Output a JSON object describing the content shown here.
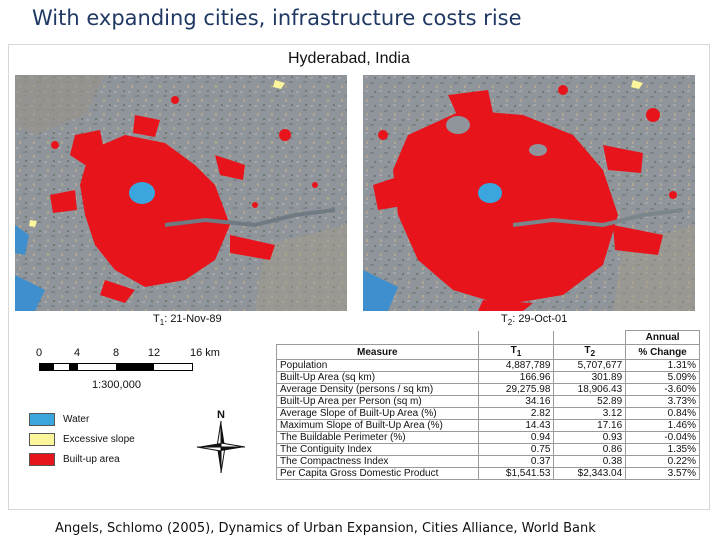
{
  "slide": {
    "title": "With expanding cities, infrastructure costs rise",
    "citation": "Angels, Schlomo (2005), Dynamics of Urban Expansion, Cities Alliance, World Bank"
  },
  "figure": {
    "title": "Hyderabad, India",
    "maps": [
      {
        "label_prefix": "T",
        "label_sub": "1",
        "label_suffix": ":",
        "date": "21-Nov-89"
      },
      {
        "label_prefix": "T",
        "label_sub": "2",
        "label_suffix": ":",
        "date": "29-Oct-01"
      }
    ],
    "scale": {
      "ticks": [
        "0",
        "4",
        "8",
        "12",
        "16 km"
      ],
      "ratio": "1:300,000"
    },
    "legend": [
      {
        "label": "Water",
        "color": "#3aa6dd"
      },
      {
        "label": "Excessive slope",
        "color": "#fbf59b"
      },
      {
        "label": "Built-up area",
        "color": "#e8141b"
      }
    ],
    "compass_letter": "N"
  },
  "table": {
    "headers": {
      "measure": "Measure",
      "t1_prefix": "T",
      "t1_sub": "1",
      "t2_prefix": "T",
      "t2_sub": "2",
      "change_line1": "Annual",
      "change_line2": "% Change"
    },
    "rows": [
      {
        "measure": "Population",
        "t1": "4,887,789",
        "t2": "5,707,677",
        "change": "1.31%"
      },
      {
        "measure": "Built-Up Area (sq km)",
        "t1": "166.96",
        "t2": "301.89",
        "change": "5.09%"
      },
      {
        "measure": "Average Density (persons / sq km)",
        "t1": "29,275.98",
        "t2": "18,906.43",
        "change": "-3.60%"
      },
      {
        "measure": "Built-Up Area per Person (sq m)",
        "t1": "34.16",
        "t2": "52.89",
        "change": "3.73%"
      },
      {
        "measure": "Average Slope of Built-Up Area (%)",
        "t1": "2.82",
        "t2": "3.12",
        "change": "0.84%"
      },
      {
        "measure": "Maximum Slope of Built-Up Area (%)",
        "t1": "14.43",
        "t2": "17.16",
        "change": "1.46%"
      },
      {
        "measure": "The Buildable Perimeter (%)",
        "t1": "0.94",
        "t2": "0.93",
        "change": "-0.04%"
      },
      {
        "measure": "The Contiguity Index",
        "t1": "0.75",
        "t2": "0.86",
        "change": "1.35%"
      },
      {
        "measure": "The Compactness Index",
        "t1": "0.37",
        "t2": "0.38",
        "change": "0.22%"
      },
      {
        "measure": "Per Capita Gross Domestic Product",
        "t1": "$1,541.53",
        "t2": "$2,343.04",
        "change": "3.57%"
      }
    ]
  }
}
